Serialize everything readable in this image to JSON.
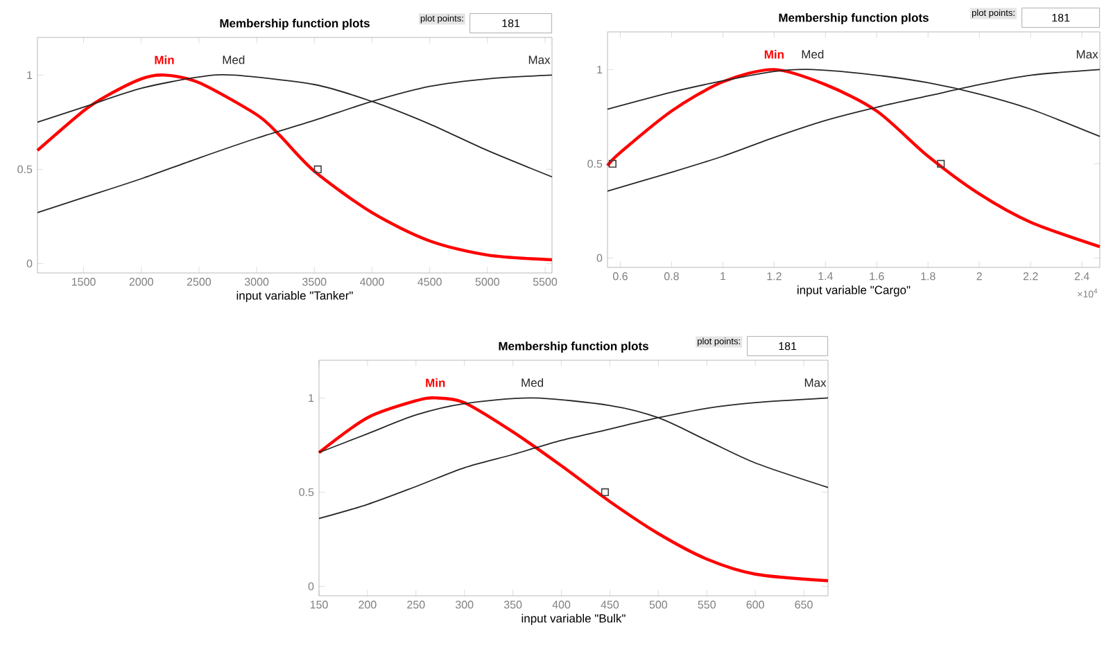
{
  "chart_data": [
    {
      "type": "line",
      "title": "Membership function plots",
      "xlabel": "input variable \"Tanker\"",
      "xlim": [
        1100,
        5560
      ],
      "ylim": [
        -0.05,
        1.2
      ],
      "xticks": [
        1500,
        2000,
        2500,
        3000,
        3500,
        4000,
        4500,
        5000,
        5500
      ],
      "yticks": [
        0,
        0.5,
        1
      ],
      "annotations": [
        "plot points:",
        "181"
      ],
      "series": [
        {
          "name": "Min",
          "color": "#ff0000",
          "x": [
            1100,
            1500,
            1700,
            2000,
            2200,
            2500,
            3000,
            3200,
            3500,
            4000,
            4500,
            5000,
            5560
          ],
          "values": [
            0.6,
            0.81,
            0.89,
            0.98,
            1.0,
            0.96,
            0.79,
            0.68,
            0.49,
            0.27,
            0.12,
            0.045,
            0.02
          ]
        },
        {
          "name": "Med",
          "color": "#262626",
          "x": [
            1100,
            1500,
            2000,
            2500,
            2800,
            3500,
            4000,
            4500,
            5000,
            5560
          ],
          "values": [
            0.75,
            0.83,
            0.93,
            0.99,
            1.0,
            0.95,
            0.86,
            0.74,
            0.6,
            0.46
          ]
        },
        {
          "name": "Max",
          "color": "#262626",
          "x": [
            1100,
            1500,
            2000,
            2500,
            3000,
            3500,
            4000,
            4500,
            5000,
            5560
          ],
          "values": [
            0.27,
            0.35,
            0.45,
            0.56,
            0.665,
            0.76,
            0.86,
            0.94,
            0.98,
            1.0
          ]
        },
        {
          "type": "scatter",
          "marker": "square",
          "color": "#404040",
          "x": [
            3530
          ],
          "values": [
            0.5
          ]
        }
      ]
    },
    {
      "type": "line",
      "title": "Membership function plots",
      "xlabel": "input variable \"Cargo\"",
      "xlim": [
        0.55,
        2.47
      ],
      "ylim": [
        -0.05,
        1.2
      ],
      "xticks": [
        0.6,
        0.8,
        1,
        1.2,
        1.4,
        1.6,
        1.8,
        2,
        2.2,
        2.4
      ],
      "yticks": [
        0,
        0.5,
        1
      ],
      "annotations": [
        "plot points:",
        "181",
        "×10$^{4}$"
      ],
      "series": [
        {
          "name": "Min",
          "color": "#ff0000",
          "x": [
            0.55,
            0.6,
            0.8,
            1.0,
            1.2,
            1.4,
            1.6,
            1.8,
            2.0,
            2.2,
            2.47
          ],
          "values": [
            0.49,
            0.56,
            0.78,
            0.935,
            1.0,
            0.92,
            0.78,
            0.54,
            0.34,
            0.19,
            0.06
          ]
        },
        {
          "name": "Med",
          "color": "#262626",
          "x": [
            0.55,
            0.8,
            1.0,
            1.2,
            1.35,
            1.6,
            1.8,
            2.0,
            2.2,
            2.47
          ],
          "values": [
            0.79,
            0.88,
            0.94,
            0.99,
            1.0,
            0.97,
            0.93,
            0.87,
            0.79,
            0.645
          ]
        },
        {
          "name": "Max",
          "color": "#262626",
          "x": [
            0.55,
            0.8,
            1.0,
            1.2,
            1.4,
            1.6,
            1.8,
            2.0,
            2.2,
            2.47
          ],
          "values": [
            0.355,
            0.455,
            0.54,
            0.64,
            0.73,
            0.8,
            0.86,
            0.92,
            0.97,
            1.0
          ]
        },
        {
          "type": "scatter",
          "marker": "square",
          "color": "#404040",
          "x": [
            0.57,
            1.85
          ],
          "values": [
            0.5,
            0.5
          ]
        }
      ]
    },
    {
      "type": "line",
      "title": "Membership function plots",
      "xlabel": "input variable \"Bulk\"",
      "xlim": [
        150,
        675
      ],
      "ylim": [
        -0.05,
        1.2
      ],
      "xticks": [
        150,
        200,
        250,
        300,
        350,
        400,
        450,
        500,
        550,
        600,
        650
      ],
      "yticks": [
        0,
        0.5,
        1
      ],
      "annotations": [
        "plot points:",
        "181"
      ],
      "series": [
        {
          "name": "Min",
          "color": "#ff0000",
          "x": [
            150,
            200,
            250,
            270,
            300,
            350,
            400,
            450,
            500,
            550,
            600,
            675
          ],
          "values": [
            0.71,
            0.895,
            0.985,
            1.0,
            0.975,
            0.82,
            0.64,
            0.45,
            0.28,
            0.145,
            0.065,
            0.03
          ]
        },
        {
          "name": "Med",
          "color": "#262626",
          "x": [
            150,
            200,
            250,
            300,
            370,
            450,
            500,
            550,
            600,
            675
          ],
          "values": [
            0.71,
            0.81,
            0.91,
            0.97,
            1.0,
            0.96,
            0.895,
            0.775,
            0.655,
            0.525
          ]
        },
        {
          "name": "Max",
          "color": "#262626",
          "x": [
            150,
            200,
            250,
            300,
            350,
            400,
            450,
            500,
            550,
            600,
            675
          ],
          "values": [
            0.36,
            0.435,
            0.53,
            0.63,
            0.7,
            0.775,
            0.835,
            0.895,
            0.945,
            0.975,
            1.0
          ]
        },
        {
          "type": "scatter",
          "marker": "square",
          "color": "#404040",
          "x": [
            445
          ],
          "values": [
            0.5
          ]
        }
      ]
    }
  ]
}
